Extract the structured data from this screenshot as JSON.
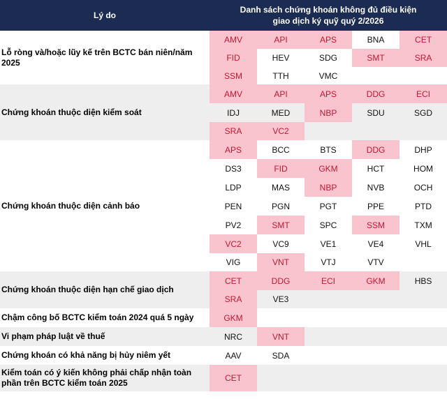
{
  "header": {
    "reason_label": "Lý do",
    "list_label_line1": "Danh sách chứng khoán không đủ điều kiện",
    "list_label_line2": "giao dịch ký quỹ quý 2/2026"
  },
  "colors": {
    "header_bg": "#1c2b52",
    "highlight_bg": "#f9c4ce",
    "highlight_text": "#c01832",
    "band_grey": "#eeeeee"
  },
  "groups": [
    {
      "reason": "Lỗ ròng và/hoặc lũy kế trên BCTC bán niên/năm 2025",
      "rows": [
        [
          {
            "t": "AMV",
            "h": true
          },
          {
            "t": "API",
            "h": true
          },
          {
            "t": "APS",
            "h": true
          },
          {
            "t": "BNA",
            "h": false
          },
          {
            "t": "CET",
            "h": true
          }
        ],
        [
          {
            "t": "FID",
            "h": true
          },
          {
            "t": "HEV",
            "h": false
          },
          {
            "t": "SDG",
            "h": false
          },
          {
            "t": "SMT",
            "h": true
          },
          {
            "t": "SRA",
            "h": true
          }
        ],
        [
          {
            "t": "SSM",
            "h": true
          },
          {
            "t": "TTH",
            "h": false
          },
          {
            "t": "VMC",
            "h": false
          }
        ]
      ]
    },
    {
      "reason": "Chứng khoán thuộc diện kiểm soát",
      "rows": [
        [
          {
            "t": "AMV",
            "h": true
          },
          {
            "t": "API",
            "h": true
          },
          {
            "t": "APS",
            "h": true
          },
          {
            "t": "DDG",
            "h": true
          },
          {
            "t": "ECI",
            "h": true
          }
        ],
        [
          {
            "t": "IDJ",
            "h": false
          },
          {
            "t": "MED",
            "h": false
          },
          {
            "t": "NBP",
            "h": true
          },
          {
            "t": "SDU",
            "h": false
          },
          {
            "t": "SGD",
            "h": false
          }
        ],
        [
          {
            "t": "SRA",
            "h": true
          },
          {
            "t": "VC2",
            "h": true
          }
        ]
      ]
    },
    {
      "reason": "Chứng khoán thuộc diện cảnh báo",
      "rows": [
        [
          {
            "t": "APS",
            "h": true
          },
          {
            "t": "BCC",
            "h": false
          },
          {
            "t": "BTS",
            "h": false
          },
          {
            "t": "DDG",
            "h": true
          },
          {
            "t": "DHP",
            "h": false
          }
        ],
        [
          {
            "t": "DS3",
            "h": false
          },
          {
            "t": "FID",
            "h": true
          },
          {
            "t": "GKM",
            "h": true
          },
          {
            "t": "HCT",
            "h": false
          },
          {
            "t": "HOM",
            "h": false
          }
        ],
        [
          {
            "t": "LDP",
            "h": false
          },
          {
            "t": "MAS",
            "h": false
          },
          {
            "t": "NBP",
            "h": true
          },
          {
            "t": "NVB",
            "h": false
          },
          {
            "t": "OCH",
            "h": false
          }
        ],
        [
          {
            "t": "PEN",
            "h": false
          },
          {
            "t": "PGN",
            "h": false
          },
          {
            "t": "PGT",
            "h": false
          },
          {
            "t": "PPE",
            "h": false
          },
          {
            "t": "PTD",
            "h": false
          }
        ],
        [
          {
            "t": "PV2",
            "h": false
          },
          {
            "t": "SMT",
            "h": true
          },
          {
            "t": "SPC",
            "h": false
          },
          {
            "t": "SSM",
            "h": true
          },
          {
            "t": "TXM",
            "h": false
          }
        ],
        [
          {
            "t": "VC2",
            "h": true
          },
          {
            "t": "VC9",
            "h": false
          },
          {
            "t": "VE1",
            "h": false
          },
          {
            "t": "VE4",
            "h": false
          },
          {
            "t": "VHL",
            "h": false
          }
        ],
        [
          {
            "t": "VIG",
            "h": false
          },
          {
            "t": "VNT",
            "h": true
          },
          {
            "t": "VTJ",
            "h": false
          },
          {
            "t": "VTV",
            "h": false
          }
        ]
      ]
    },
    {
      "reason": "Chứng khoán thuộc diện hạn chế giao dịch",
      "rows": [
        [
          {
            "t": "CET",
            "h": true
          },
          {
            "t": "DDG",
            "h": true
          },
          {
            "t": "ECI",
            "h": true
          },
          {
            "t": "GKM",
            "h": true
          },
          {
            "t": "HBS",
            "h": false
          }
        ],
        [
          {
            "t": "SRA",
            "h": true
          },
          {
            "t": "VE3",
            "h": false
          }
        ]
      ]
    },
    {
      "reason": "Chậm công bố BCTC kiểm toán 2024 quá 5 ngày",
      "rows": [
        [
          {
            "t": "GKM",
            "h": true
          }
        ]
      ]
    },
    {
      "reason": "Vi phạm pháp luật về thuế",
      "rows": [
        [
          {
            "t": "NRC",
            "h": false
          },
          {
            "t": "VNT",
            "h": true
          }
        ]
      ]
    },
    {
      "reason": "Chứng khoán có khả năng bị hủy niêm yết",
      "rows": [
        [
          {
            "t": "AAV",
            "h": false
          },
          {
            "t": "SDA",
            "h": false
          }
        ]
      ]
    },
    {
      "reason": "Kiểm toán có ý kiến không phải chấp nhận toàn phần trên BCTC kiểm toán 2025",
      "rows": [
        [
          {
            "t": "CET",
            "h": true
          }
        ]
      ]
    }
  ]
}
